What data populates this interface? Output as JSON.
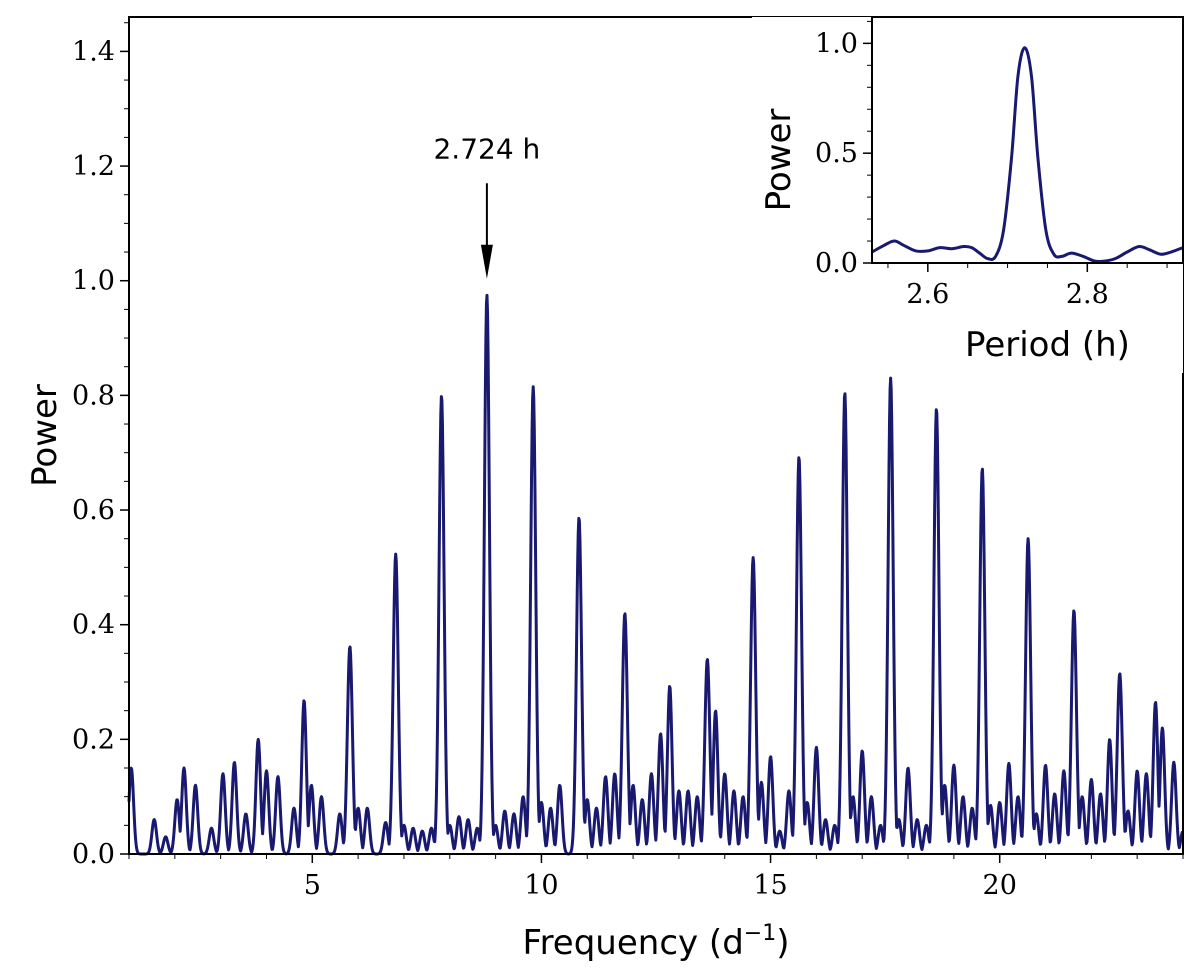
{
  "chart_data": [
    {
      "type": "line",
      "name": "periodogram",
      "xlabel": "Frequency (d",
      "xlabel_sup": "−1",
      "xlabel_close": ")",
      "ylabel": "Power",
      "xlim": [
        1,
        24
      ],
      "ylim": [
        0,
        1.46
      ],
      "xticks": [
        5,
        10,
        15,
        20
      ],
      "xtick_labels": [
        "5",
        "10",
        "15",
        "20"
      ],
      "yticks": [
        0,
        0.2,
        0.4,
        0.6,
        0.8,
        1.0,
        1.2,
        1.4
      ],
      "ytick_labels": [
        "0.0",
        "0.2",
        "0.4",
        "0.6",
        "0.8",
        "1.0",
        "1.2",
        "1.4"
      ],
      "line_color": "#191970",
      "annotation": {
        "text": "2.724 h",
        "x": 8.81,
        "y": 0.975,
        "arrow_start_y": 1.17,
        "arrow_end_y": 1.0
      },
      "peaks": [
        [
          1.05,
          0.15
        ],
        [
          1.55,
          0.06
        ],
        [
          1.8,
          0.03
        ],
        [
          2.05,
          0.095
        ],
        [
          2.2,
          0.15
        ],
        [
          2.45,
          0.12
        ],
        [
          2.8,
          0.045
        ],
        [
          3.05,
          0.14
        ],
        [
          3.3,
          0.16
        ],
        [
          3.55,
          0.07
        ],
        [
          3.82,
          0.2
        ],
        [
          4.0,
          0.145
        ],
        [
          4.25,
          0.135
        ],
        [
          4.6,
          0.08
        ],
        [
          4.82,
          0.268
        ],
        [
          4.98,
          0.12
        ],
        [
          5.2,
          0.1
        ],
        [
          5.6,
          0.07
        ],
        [
          5.82,
          0.362
        ],
        [
          6.0,
          0.08
        ],
        [
          6.2,
          0.08
        ],
        [
          6.6,
          0.055
        ],
        [
          6.82,
          0.523
        ],
        [
          7.0,
          0.05
        ],
        [
          7.2,
          0.045
        ],
        [
          7.4,
          0.04
        ],
        [
          7.6,
          0.045
        ],
        [
          7.82,
          0.8
        ],
        [
          8.0,
          0.05
        ],
        [
          8.2,
          0.065
        ],
        [
          8.4,
          0.06
        ],
        [
          8.6,
          0.045
        ],
        [
          8.81,
          0.975
        ],
        [
          9.0,
          0.05
        ],
        [
          9.2,
          0.075
        ],
        [
          9.4,
          0.07
        ],
        [
          9.6,
          0.1
        ],
        [
          9.82,
          0.815
        ],
        [
          10.0,
          0.09
        ],
        [
          10.2,
          0.08
        ],
        [
          10.4,
          0.12
        ],
        [
          10.82,
          0.587
        ],
        [
          11.0,
          0.095
        ],
        [
          11.2,
          0.08
        ],
        [
          11.4,
          0.135
        ],
        [
          11.6,
          0.14
        ],
        [
          11.82,
          0.42
        ],
        [
          12.0,
          0.12
        ],
        [
          12.2,
          0.095
        ],
        [
          12.4,
          0.14
        ],
        [
          12.6,
          0.21
        ],
        [
          12.8,
          0.293
        ],
        [
          13.0,
          0.11
        ],
        [
          13.2,
          0.11
        ],
        [
          13.4,
          0.1
        ],
        [
          13.62,
          0.34
        ],
        [
          13.8,
          0.25
        ],
        [
          14.0,
          0.14
        ],
        [
          14.2,
          0.11
        ],
        [
          14.4,
          0.1
        ],
        [
          14.62,
          0.517
        ],
        [
          14.8,
          0.125
        ],
        [
          15.0,
          0.17
        ],
        [
          15.2,
          0.04
        ],
        [
          15.4,
          0.11
        ],
        [
          15.62,
          0.693
        ],
        [
          15.8,
          0.09
        ],
        [
          16.0,
          0.186
        ],
        [
          16.2,
          0.06
        ],
        [
          16.4,
          0.05
        ],
        [
          16.62,
          0.805
        ],
        [
          16.8,
          0.1
        ],
        [
          17.0,
          0.18
        ],
        [
          17.2,
          0.1
        ],
        [
          17.4,
          0.05
        ],
        [
          17.62,
          0.83
        ],
        [
          17.8,
          0.06
        ],
        [
          18.0,
          0.15
        ],
        [
          18.2,
          0.06
        ],
        [
          18.4,
          0.05
        ],
        [
          18.62,
          0.777
        ],
        [
          18.8,
          0.12
        ],
        [
          19.0,
          0.155
        ],
        [
          19.2,
          0.1
        ],
        [
          19.4,
          0.08
        ],
        [
          19.62,
          0.673
        ],
        [
          19.8,
          0.085
        ],
        [
          20.0,
          0.09
        ],
        [
          20.2,
          0.158
        ],
        [
          20.4,
          0.1
        ],
        [
          20.62,
          0.55
        ],
        [
          20.8,
          0.07
        ],
        [
          21.0,
          0.155
        ],
        [
          21.2,
          0.105
        ],
        [
          21.4,
          0.145
        ],
        [
          21.62,
          0.425
        ],
        [
          21.8,
          0.1
        ],
        [
          22.0,
          0.13
        ],
        [
          22.2,
          0.105
        ],
        [
          22.4,
          0.2
        ],
        [
          22.62,
          0.315
        ],
        [
          22.8,
          0.075
        ],
        [
          23.0,
          0.145
        ],
        [
          23.2,
          0.14
        ],
        [
          23.4,
          0.265
        ],
        [
          23.55,
          0.22
        ],
        [
          23.8,
          0.16
        ],
        [
          24.0,
          0.04
        ]
      ]
    },
    {
      "type": "line",
      "name": "inset",
      "xlabel": "Period (h)",
      "ylabel": "Power",
      "xlim": [
        2.53,
        2.92
      ],
      "ylim": [
        0,
        1.12
      ],
      "xticks": [
        2.6,
        2.8
      ],
      "xtick_labels": [
        "2.6",
        "2.8"
      ],
      "yticks": [
        0,
        0.5,
        1.0
      ],
      "ytick_labels": [
        "0.0",
        "0.5",
        "1.0"
      ],
      "line_color": "#191970",
      "points": [
        [
          2.53,
          0.05
        ],
        [
          2.545,
          0.08
        ],
        [
          2.558,
          0.1
        ],
        [
          2.57,
          0.08
        ],
        [
          2.585,
          0.055
        ],
        [
          2.6,
          0.055
        ],
        [
          2.615,
          0.07
        ],
        [
          2.63,
          0.065
        ],
        [
          2.645,
          0.075
        ],
        [
          2.655,
          0.07
        ],
        [
          2.665,
          0.045
        ],
        [
          2.675,
          0.02
        ],
        [
          2.685,
          0.03
        ],
        [
          2.695,
          0.15
        ],
        [
          2.705,
          0.48
        ],
        [
          2.713,
          0.85
        ],
        [
          2.7215,
          0.98
        ],
        [
          2.73,
          0.85
        ],
        [
          2.738,
          0.48
        ],
        [
          2.748,
          0.15
        ],
        [
          2.758,
          0.04
        ],
        [
          2.768,
          0.03
        ],
        [
          2.78,
          0.045
        ],
        [
          2.795,
          0.03
        ],
        [
          2.808,
          0.01
        ],
        [
          2.82,
          0.008
        ],
        [
          2.835,
          0.02
        ],
        [
          2.85,
          0.05
        ],
        [
          2.865,
          0.075
        ],
        [
          2.878,
          0.06
        ],
        [
          2.892,
          0.04
        ],
        [
          2.905,
          0.05
        ],
        [
          2.92,
          0.07
        ]
      ]
    }
  ]
}
